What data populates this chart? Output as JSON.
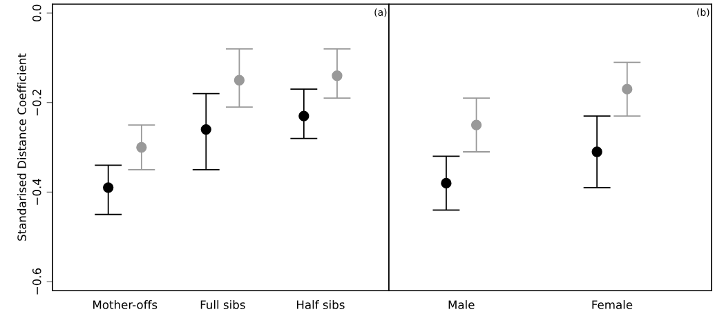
{
  "chart_data": [
    {
      "type": "scatter",
      "ylabel": "Standarised Distance Coefficient",
      "categories": [
        "Mother-offs",
        "Full sibs",
        "Half sibs"
      ],
      "ylim": [
        -0.62,
        0.02
      ],
      "yticks": [
        {
          "value": 0.0,
          "label": "0.0"
        },
        {
          "value": -0.2,
          "label": "−0.2"
        },
        {
          "value": -0.4,
          "label": "−0.4"
        },
        {
          "value": -0.6,
          "label": "−0.6"
        }
      ],
      "marker": "circle",
      "grid": false,
      "annotations": [
        "(a)"
      ],
      "series": [
        {
          "color": "#000000",
          "values": [
            -0.39,
            -0.26,
            -0.23
          ],
          "errors": [
            [
              -0.45,
              -0.34
            ],
            [
              -0.35,
              -0.18
            ],
            [
              -0.28,
              -0.17
            ]
          ]
        },
        {
          "color": "#999999",
          "values": [
            -0.3,
            -0.15,
            -0.14
          ],
          "errors": [
            [
              -0.35,
              -0.25
            ],
            [
              -0.21,
              -0.08
            ],
            [
              -0.19,
              -0.08
            ]
          ]
        }
      ]
    },
    {
      "type": "scatter",
      "categories": [
        "Male",
        "Female"
      ],
      "ylim": [
        -0.62,
        0.02
      ],
      "tick_labels": "x",
      "marker": "circle",
      "grid": false,
      "annotations": [
        "(b)"
      ],
      "series": [
        {
          "color": "#000000",
          "values": [
            -0.38,
            -0.31
          ],
          "errors": [
            [
              -0.44,
              -0.32
            ],
            [
              -0.39,
              -0.23
            ]
          ]
        },
        {
          "color": "#999999",
          "values": [
            -0.25,
            -0.17
          ],
          "errors": [
            [
              -0.31,
              -0.19
            ],
            [
              -0.23,
              -0.11
            ]
          ]
        }
      ]
    }
  ]
}
